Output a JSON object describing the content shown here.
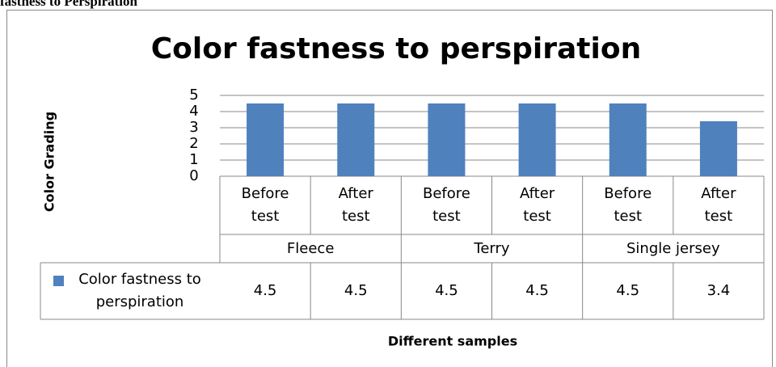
{
  "caption": "fastness to Perspiration",
  "chart_data": {
    "type": "bar",
    "title": "Color fastness to perspiration",
    "y_label": "Color Grading",
    "x_label": "Different samples",
    "categories": [
      "Before test",
      "After test",
      "Before test",
      "After test",
      "Before test",
      "After test"
    ],
    "groups": [
      "Fleece",
      "Terry",
      "Single jersey"
    ],
    "series": [
      {
        "name": "Color fastness to perspiration",
        "color": "#4f81bd",
        "values": [
          4.5,
          4.5,
          4.5,
          4.5,
          4.5,
          3.4
        ]
      }
    ],
    "ylim": [
      0,
      5
    ],
    "yticks": [
      0,
      1,
      2,
      3,
      4,
      5
    ],
    "grid": true,
    "data_table": true
  }
}
